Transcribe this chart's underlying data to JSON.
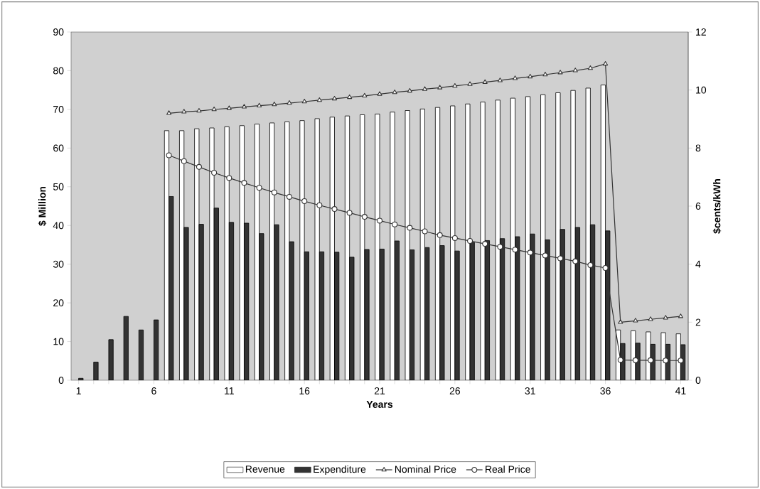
{
  "chart_data": {
    "type": "bar",
    "xlabel": "Years",
    "ylabel": "$ Million",
    "y2label": "$cents/kWh",
    "categories": [
      "1",
      null,
      null,
      null,
      null,
      "6",
      null,
      null,
      null,
      null,
      "11",
      null,
      null,
      null,
      null,
      "16",
      null,
      null,
      null,
      null,
      "21",
      null,
      null,
      null,
      null,
      "26",
      null,
      null,
      null,
      null,
      "31",
      null,
      null,
      null,
      null,
      "36",
      null,
      null,
      null,
      null,
      "41"
    ],
    "ylim": [
      0,
      90
    ],
    "yticks": [
      0,
      10,
      20,
      30,
      40,
      50,
      60,
      70,
      80,
      90
    ],
    "y2lim": [
      0,
      12
    ],
    "y2ticks": [
      0,
      2,
      4,
      6,
      8,
      10,
      12
    ],
    "legend": "bottom",
    "series": [
      {
        "name": "Revenue",
        "color": "#ffffff",
        "values": [
          null,
          null,
          null,
          null,
          null,
          null,
          64.5,
          64.5,
          65,
          65.2,
          65.5,
          65.8,
          66.2,
          66.5,
          66.8,
          67.1,
          67.6,
          68,
          68.3,
          68.6,
          68.8,
          69.3,
          69.7,
          70.1,
          70.5,
          70.9,
          71.4,
          71.9,
          72.4,
          72.9,
          73.3,
          73.8,
          74.3,
          74.9,
          75.5,
          76.3,
          13,
          12.8,
          12.5,
          12.3,
          12
        ]
      },
      {
        "name": "Expenditure",
        "color": "#333333",
        "values": [
          0.5,
          4.7,
          10.5,
          16.5,
          13,
          15.6,
          47.5,
          39.5,
          40.3,
          44.5,
          40.8,
          40.6,
          37.9,
          40.2,
          35.8,
          33.2,
          33.2,
          33.1,
          31.8,
          33.8,
          33.9,
          36,
          33.7,
          34.3,
          34.8,
          33.4,
          35.6,
          36.1,
          36.6,
          37.1,
          37.8,
          36.3,
          39,
          39.5,
          40.2,
          38.6,
          9.5,
          9.6,
          9.3,
          9.3,
          9.2
        ]
      },
      {
        "name": "Nominal Price",
        "type": "line",
        "axis": "y2",
        "marker": "triangle",
        "color": "#333333",
        "values": [
          null,
          null,
          null,
          null,
          null,
          null,
          9.2,
          9.25,
          9.28,
          9.33,
          9.37,
          9.42,
          9.46,
          9.5,
          9.55,
          9.6,
          9.65,
          9.7,
          9.75,
          9.8,
          9.86,
          9.92,
          9.97,
          10.03,
          10.08,
          10.14,
          10.2,
          10.27,
          10.33,
          10.4,
          10.46,
          10.53,
          10.6,
          10.67,
          10.75,
          10.9,
          2.0,
          2.05,
          2.1,
          2.15,
          2.2
        ]
      },
      {
        "name": "Real Price",
        "type": "line",
        "axis": "y2",
        "marker": "circle",
        "color": "#333333",
        "values": [
          null,
          null,
          null,
          null,
          null,
          null,
          7.75,
          7.55,
          7.35,
          7.15,
          6.97,
          6.8,
          6.63,
          6.47,
          6.32,
          6.17,
          6.03,
          5.9,
          5.77,
          5.63,
          5.5,
          5.37,
          5.25,
          5.13,
          5.0,
          4.9,
          4.8,
          4.7,
          4.6,
          4.5,
          4.4,
          4.3,
          4.2,
          4.1,
          3.97,
          3.87,
          0.7,
          0.69,
          0.69,
          0.68,
          0.68
        ]
      }
    ]
  }
}
